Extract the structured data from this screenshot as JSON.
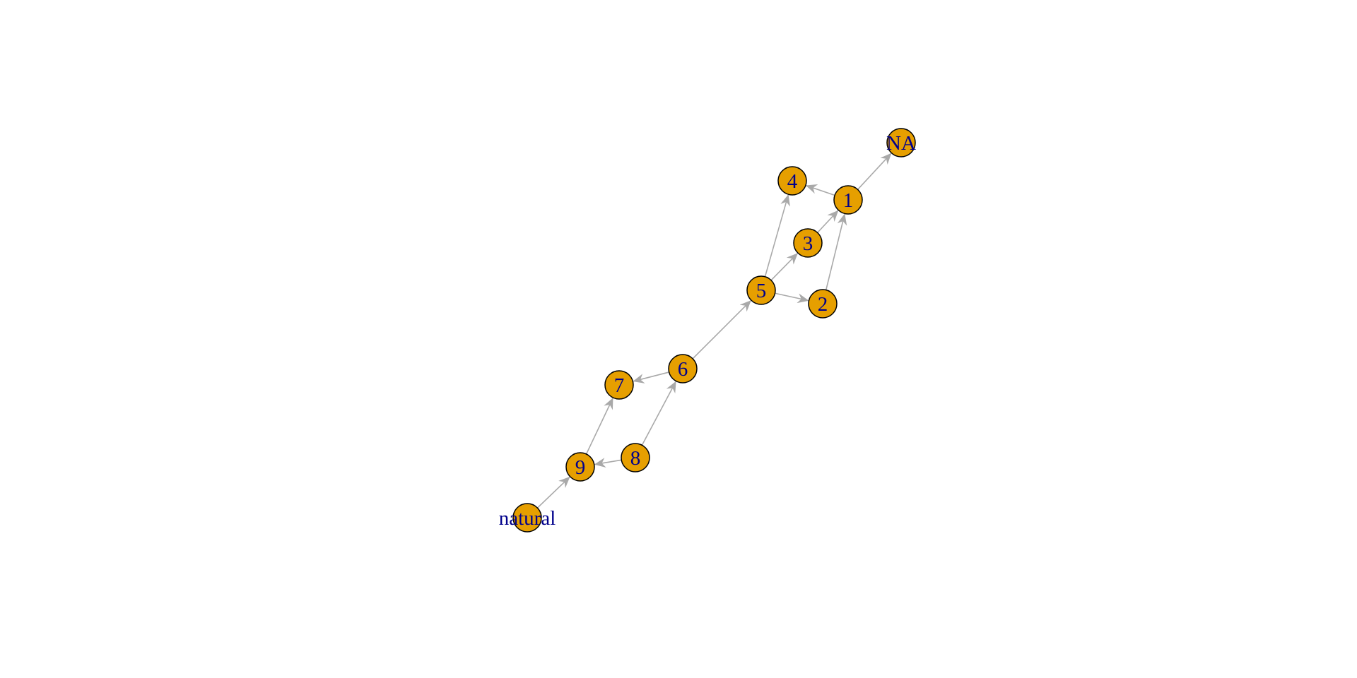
{
  "graph": {
    "node_fill": "#E69F00",
    "node_stroke": "#000000",
    "label_color": "#00008B",
    "edge_color": "#A9A9A9",
    "nodes": [
      {
        "id": "NA",
        "label": "NA"
      },
      {
        "id": "1",
        "label": "1"
      },
      {
        "id": "4",
        "label": "4"
      },
      {
        "id": "3",
        "label": "3"
      },
      {
        "id": "5",
        "label": "5"
      },
      {
        "id": "2",
        "label": "2"
      },
      {
        "id": "6",
        "label": "6"
      },
      {
        "id": "7",
        "label": "7"
      },
      {
        "id": "8",
        "label": "8"
      },
      {
        "id": "9",
        "label": "9"
      },
      {
        "id": "natural",
        "label": "natural"
      }
    ],
    "edges": [
      {
        "from": "1",
        "to": "NA"
      },
      {
        "from": "1",
        "to": "4"
      },
      {
        "from": "3",
        "to": "1"
      },
      {
        "from": "2",
        "to": "1"
      },
      {
        "from": "5",
        "to": "4"
      },
      {
        "from": "5",
        "to": "3"
      },
      {
        "from": "5",
        "to": "2"
      },
      {
        "from": "6",
        "to": "5"
      },
      {
        "from": "6",
        "to": "7"
      },
      {
        "from": "8",
        "to": "6"
      },
      {
        "from": "9",
        "to": "7"
      },
      {
        "from": "8",
        "to": "9"
      },
      {
        "from": "natural",
        "to": "9"
      }
    ]
  }
}
